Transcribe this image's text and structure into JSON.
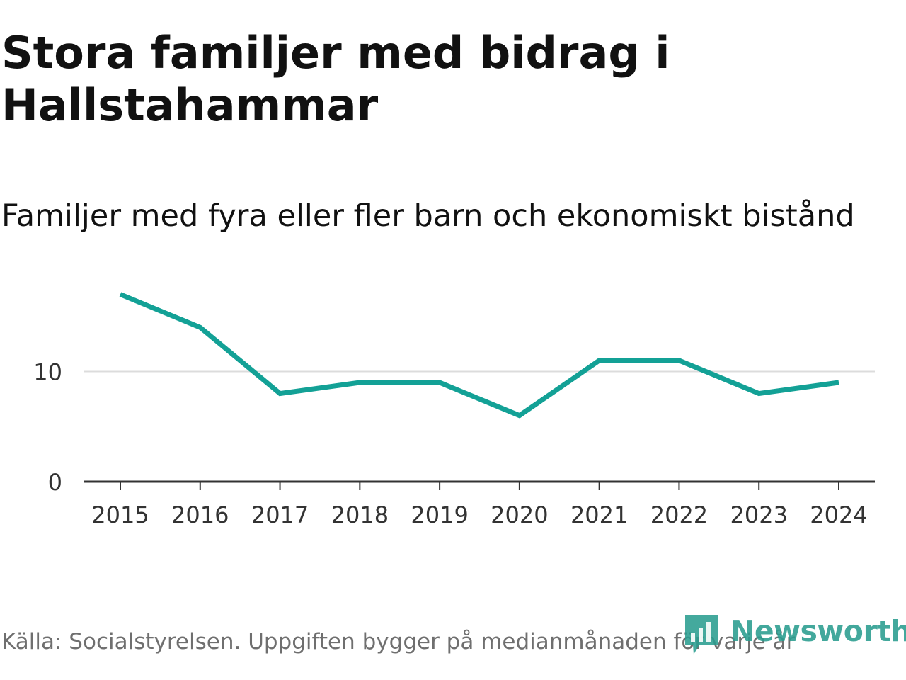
{
  "title": "Stora familjer med bidrag i Hallstahammar",
  "subtitle": "Familjer med fyra eller fler barn och ekonomiskt bistånd",
  "source": "Källa: Socialstyrelsen. Uppgiften bygger på medianmånaden för varje år",
  "logo": {
    "text": "Newsworthy",
    "icon": "newsworthy-logo-icon"
  },
  "colors": {
    "line": "#13a196",
    "axis": "#333333",
    "grid": "#dcdcdc",
    "logo": "#2a9d8f",
    "tick_text": "#333333"
  },
  "chart_data": {
    "type": "line",
    "title": "Stora familjer med bidrag i Hallstahammar",
    "subtitle": "Familjer med fyra eller fler barn och ekonomiskt bistånd",
    "categories": [
      "2015",
      "2016",
      "2017",
      "2018",
      "2019",
      "2020",
      "2021",
      "2022",
      "2023",
      "2024"
    ],
    "series": [
      {
        "name": "Familjer med fyra eller fler barn och ekonomiskt bistånd",
        "values": [
          17,
          14,
          8,
          9,
          9,
          6,
          11,
          11,
          8,
          9
        ]
      }
    ],
    "yticks": [
      0,
      10
    ],
    "ylim": [
      0,
      18
    ],
    "xlabel": "",
    "ylabel": "",
    "grid": true,
    "legend": "none"
  }
}
